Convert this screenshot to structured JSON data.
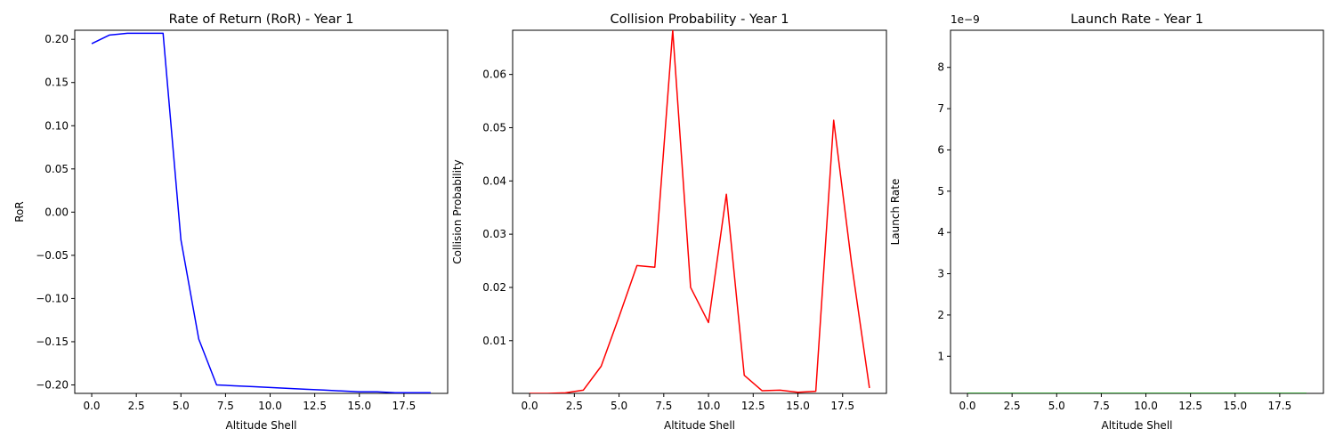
{
  "chart_data": [
    {
      "type": "line",
      "title": "Rate of Return (RoR) - Year 1",
      "xlabel": "Altitude Shell",
      "ylabel": "RoR",
      "x": [
        0,
        1,
        2,
        3,
        4,
        5,
        6,
        7,
        8,
        9,
        10,
        11,
        12,
        13,
        14,
        15,
        16,
        17,
        18,
        19
      ],
      "series": [
        {
          "color": "#0000ff",
          "values": [
            0.195,
            0.205,
            0.207,
            0.207,
            0.207,
            -0.032,
            -0.147,
            -0.2,
            -0.201,
            -0.202,
            -0.203,
            -0.204,
            -0.205,
            -0.206,
            -0.207,
            -0.208,
            -0.208,
            -0.209,
            -0.209,
            -0.209
          ]
        }
      ],
      "xlim": [
        -0.95,
        19.95
      ],
      "ylim": [
        -0.2098,
        0.2105
      ],
      "xticks": [
        0,
        2.5,
        5,
        7.5,
        10,
        12.5,
        15,
        17.5
      ],
      "xtick_labels": [
        "0.0",
        "2.5",
        "5.0",
        "7.5",
        "10.0",
        "12.5",
        "15.0",
        "17.5"
      ],
      "yticks": [
        -0.2,
        -0.15,
        -0.1,
        -0.05,
        0,
        0.05,
        0.1,
        0.15,
        0.2
      ],
      "ytick_labels": [
        "−0.20",
        "−0.15",
        "−0.10",
        "−0.05",
        "0.00",
        "0.05",
        "0.10",
        "0.15",
        "0.20"
      ],
      "offset_text": "",
      "grid": false
    },
    {
      "type": "line",
      "title": "Collision Probability - Year 1",
      "xlabel": "Altitude Shell",
      "ylabel": "Collision Probability",
      "x": [
        0,
        1,
        2,
        3,
        4,
        5,
        6,
        7,
        8,
        9,
        10,
        11,
        12,
        13,
        14,
        15,
        16,
        17,
        18,
        19
      ],
      "series": [
        {
          "color": "#ff0000",
          "values": [
            0.0001,
            0.0001,
            0.0002,
            0.0007,
            0.0052,
            0.0145,
            0.0241,
            0.0238,
            0.0683,
            0.02,
            0.0134,
            0.0375,
            0.0035,
            0.0006,
            0.0007,
            0.0003,
            0.0005,
            0.0514,
            0.0245,
            0.0011
          ]
        }
      ],
      "xlim": [
        -0.95,
        19.95
      ],
      "ylim": [
        0.0001,
        0.0683
      ],
      "xticks": [
        0,
        2.5,
        5,
        7.5,
        10,
        12.5,
        15,
        17.5
      ],
      "xtick_labels": [
        "0.0",
        "2.5",
        "5.0",
        "7.5",
        "10.0",
        "12.5",
        "15.0",
        "17.5"
      ],
      "yticks": [
        0.01,
        0.02,
        0.03,
        0.04,
        0.05,
        0.06
      ],
      "ytick_labels": [
        "0.01",
        "0.02",
        "0.03",
        "0.04",
        "0.05",
        "0.06"
      ],
      "offset_text": "",
      "grid": false
    },
    {
      "type": "line",
      "title": "Launch Rate - Year 1",
      "xlabel": "Altitude Shell",
      "ylabel": "Launch Rate",
      "x": [
        0,
        1,
        2,
        3,
        4,
        5,
        6,
        7,
        8,
        9,
        10,
        11,
        12,
        13,
        14,
        15,
        16,
        17,
        18,
        19
      ],
      "series": [
        {
          "color": "#008000",
          "values": [
            1e-10,
            1e-10,
            1e-10,
            1e-10,
            1e-10,
            1e-10,
            1e-10,
            1e-10,
            1e-10,
            1e-10,
            1e-10,
            1e-10,
            1e-10,
            1e-10,
            1e-10,
            1e-10,
            1e-10,
            1e-10,
            1e-10,
            1e-10
          ]
        }
      ],
      "xlim": [
        -0.95,
        19.95
      ],
      "ylim": [
        1e-10,
        8.9e-09
      ],
      "xticks": [
        0,
        2.5,
        5,
        7.5,
        10,
        12.5,
        15,
        17.5
      ],
      "xtick_labels": [
        "0.0",
        "2.5",
        "5.0",
        "7.5",
        "10.0",
        "12.5",
        "15.0",
        "17.5"
      ],
      "yticks": [
        1e-09,
        2e-09,
        3e-09,
        4e-09,
        5e-09,
        6e-09,
        7e-09,
        8e-09
      ],
      "ytick_labels": [
        "1",
        "2",
        "3",
        "4",
        "5",
        "6",
        "7",
        "8"
      ],
      "offset_text": "1e−9",
      "grid": false
    }
  ]
}
